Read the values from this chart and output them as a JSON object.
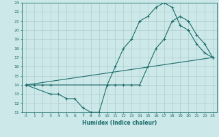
{
  "xlabel": "Humidex (Indice chaleur)",
  "xlim": [
    -0.5,
    23.5
  ],
  "ylim": [
    11,
    23
  ],
  "xticks": [
    0,
    1,
    2,
    3,
    4,
    5,
    6,
    7,
    8,
    9,
    10,
    11,
    12,
    13,
    14,
    15,
    16,
    17,
    18,
    19,
    20,
    21,
    22,
    23
  ],
  "yticks": [
    11,
    12,
    13,
    14,
    15,
    16,
    17,
    18,
    19,
    20,
    21,
    22,
    23
  ],
  "bg_color": "#cce8e8",
  "grid_color": "#b0cccc",
  "line_color": "#1a6b6b",
  "curve1_x": [
    0,
    1,
    2,
    3,
    10,
    11,
    12,
    13,
    14,
    15,
    16,
    17,
    18,
    19,
    20,
    21,
    22,
    23
  ],
  "curve1_y": [
    14,
    14,
    14,
    14,
    14,
    16,
    18,
    19,
    21,
    21.5,
    22.5,
    23,
    22.5,
    20.5,
    20,
    18.5,
    17.5,
    17
  ],
  "curve2_x": [
    0,
    3,
    4,
    5,
    6,
    7,
    8,
    9,
    10,
    11,
    12,
    13,
    14,
    15,
    16,
    17,
    18,
    19,
    20,
    21,
    22,
    23
  ],
  "curve2_y": [
    14,
    13,
    13,
    12.5,
    12.5,
    11.5,
    11,
    11,
    14,
    14,
    14,
    14,
    14,
    16,
    18,
    19,
    21,
    21.5,
    21,
    19.5,
    18.5,
    17
  ],
  "curve3_x": [
    0,
    23
  ],
  "curve3_y": [
    14,
    17
  ]
}
